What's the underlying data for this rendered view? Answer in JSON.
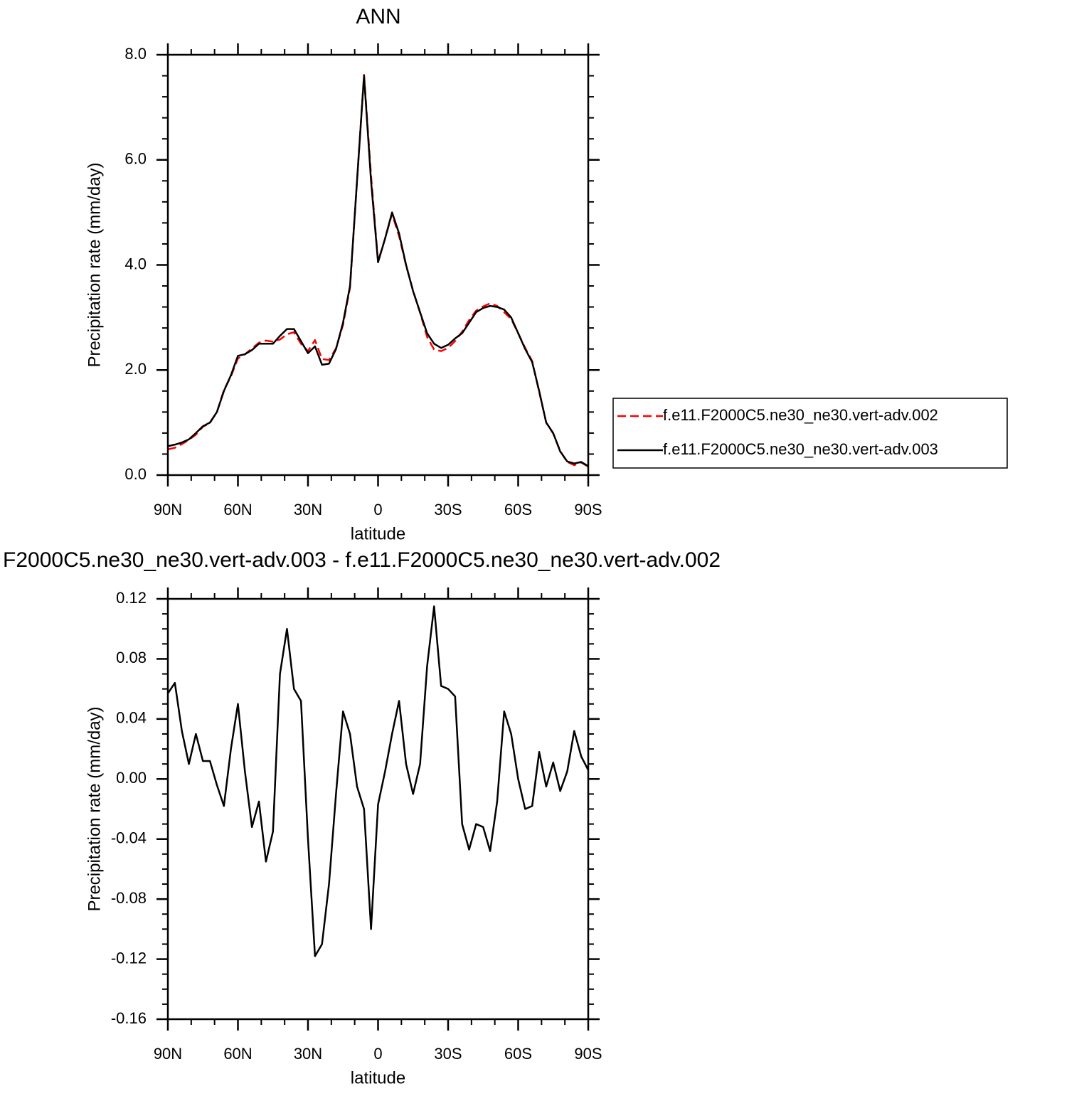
{
  "chart_data": [
    {
      "type": "line",
      "title": "ANN",
      "ylabel": "Precipitation rate (mm/day)",
      "xlabel": "latitude",
      "x": [
        90,
        87,
        84,
        81,
        78,
        75,
        72,
        69,
        66,
        63,
        60,
        57,
        54,
        51,
        48,
        45,
        42,
        39,
        36,
        33,
        30,
        27,
        24,
        21,
        18,
        15,
        12,
        9,
        6,
        3,
        0,
        -3,
        -6,
        -9,
        -12,
        -15,
        -18,
        -21,
        -24,
        -27,
        -30,
        -33,
        -36,
        -39,
        -42,
        -45,
        -48,
        -51,
        -54,
        -57,
        -60,
        -63,
        -66,
        -69,
        -72,
        -75,
        -78,
        -81,
        -84,
        -87,
        -90
      ],
      "xlim": [
        90,
        -90
      ],
      "xticks": [
        {
          "value": 90,
          "label": "90N"
        },
        {
          "value": 60,
          "label": "60N"
        },
        {
          "value": 30,
          "label": "30N"
        },
        0,
        {
          "value": -30,
          "label": "30S"
        },
        {
          "value": -60,
          "label": "60S"
        },
        {
          "value": -90,
          "label": "90S"
        }
      ],
      "ylim": [
        0,
        8
      ],
      "yticks": [
        {
          "value": 0,
          "label": "0.0"
        },
        {
          "value": 2,
          "label": "2.0"
        },
        {
          "value": 4,
          "label": "4.0"
        },
        {
          "value": 6,
          "label": "6.0"
        },
        {
          "value": 8,
          "label": "8.0"
        }
      ],
      "legend": "right",
      "series": [
        {
          "name": "f.e11.F2000C5.ne30_ne30.vert-adv.002",
          "color": "#ff0000",
          "dashed": true,
          "values": [
            0.49,
            0.52,
            0.59,
            0.67,
            0.77,
            0.92,
            0.99,
            1.2,
            1.62,
            1.88,
            2.22,
            2.3,
            2.41,
            2.52,
            2.56,
            2.54,
            2.58,
            2.68,
            2.72,
            2.5,
            2.36,
            2.57,
            2.21,
            2.19,
            2.41,
            2.86,
            3.57,
            5.6,
            7.62,
            5.7,
            4.07,
            4.5,
            4.97,
            4.55,
            3.99,
            3.51,
            3.09,
            2.63,
            2.39,
            2.36,
            2.42,
            2.55,
            2.73,
            2.95,
            3.13,
            3.21,
            3.27,
            3.22,
            3.1,
            2.97,
            2.7,
            2.42,
            2.17,
            1.58,
            1.0,
            0.79,
            0.46,
            0.25,
            0.19,
            0.24,
            0.16
          ]
        },
        {
          "name": "f.e11.F2000C5.ne30_ne30.vert-adv.003",
          "color": "#000000",
          "dashed": false,
          "values": [
            0.55,
            0.58,
            0.62,
            0.68,
            0.8,
            0.93,
            1.0,
            1.2,
            1.6,
            1.9,
            2.27,
            2.3,
            2.38,
            2.5,
            2.5,
            2.5,
            2.65,
            2.78,
            2.78,
            2.55,
            2.32,
            2.45,
            2.1,
            2.12,
            2.4,
            2.9,
            3.6,
            5.6,
            7.6,
            5.6,
            4.05,
            4.5,
            5.0,
            4.6,
            4.0,
            3.5,
            3.1,
            2.7,
            2.5,
            2.42,
            2.48,
            2.6,
            2.7,
            2.9,
            3.1,
            3.18,
            3.22,
            3.2,
            3.15,
            3.0,
            2.7,
            2.4,
            2.15,
            1.6,
            1.0,
            0.8,
            0.45,
            0.26,
            0.22,
            0.25,
            0.17
          ]
        }
      ]
    },
    {
      "type": "line",
      "title": "F2000C5.ne30_ne30.vert-adv.003 - f.e11.F2000C5.ne30_ne30.vert-adv.002",
      "ylabel": "Precipitation rate (mm/day)",
      "xlabel": "latitude",
      "x": [
        90,
        87,
        84,
        81,
        78,
        75,
        72,
        69,
        66,
        63,
        60,
        57,
        54,
        51,
        48,
        45,
        42,
        39,
        36,
        33,
        30,
        27,
        24,
        21,
        18,
        15,
        12,
        9,
        6,
        3,
        0,
        -3,
        -6,
        -9,
        -12,
        -15,
        -18,
        -21,
        -24,
        -27,
        -30,
        -33,
        -36,
        -39,
        -42,
        -45,
        -48,
        -51,
        -54,
        -57,
        -60,
        -63,
        -66,
        -69,
        -72,
        -75,
        -78,
        -81,
        -84,
        -87,
        -90
      ],
      "xlim": [
        90,
        -90
      ],
      "xticks": [
        {
          "value": 90,
          "label": "90N"
        },
        {
          "value": 60,
          "label": "60N"
        },
        {
          "value": 30,
          "label": "30N"
        },
        0,
        {
          "value": -30,
          "label": "30S"
        },
        {
          "value": -60,
          "label": "60S"
        },
        {
          "value": -90,
          "label": "90S"
        }
      ],
      "ylim": [
        -0.16,
        0.12
      ],
      "yticks": [
        -0.16,
        -0.12,
        -0.08,
        -0.04,
        {
          "value": 0,
          "label": "0.00"
        },
        0.04,
        0.08,
        0.12
      ],
      "series": [
        {
          "color": "#000000",
          "dashed": false,
          "values": [
            0.057,
            0.064,
            0.032,
            0.01,
            0.03,
            0.012,
            0.012,
            -0.004,
            -0.018,
            0.02,
            0.05,
            0.005,
            -0.032,
            -0.015,
            -0.055,
            -0.035,
            0.07,
            0.1,
            0.06,
            0.052,
            -0.04,
            -0.118,
            -0.11,
            -0.07,
            -0.01,
            0.045,
            0.03,
            -0.005,
            -0.02,
            -0.1,
            -0.017,
            0.005,
            0.03,
            0.052,
            0.01,
            -0.01,
            0.01,
            0.075,
            0.115,
            0.062,
            0.06,
            0.055,
            -0.03,
            -0.047,
            -0.03,
            -0.032,
            -0.048,
            -0.015,
            0.045,
            0.03,
            0.0,
            -0.02,
            -0.018,
            0.018,
            -0.005,
            0.011,
            -0.008,
            0.005,
            0.032,
            0.015,
            0.006
          ]
        }
      ]
    }
  ]
}
